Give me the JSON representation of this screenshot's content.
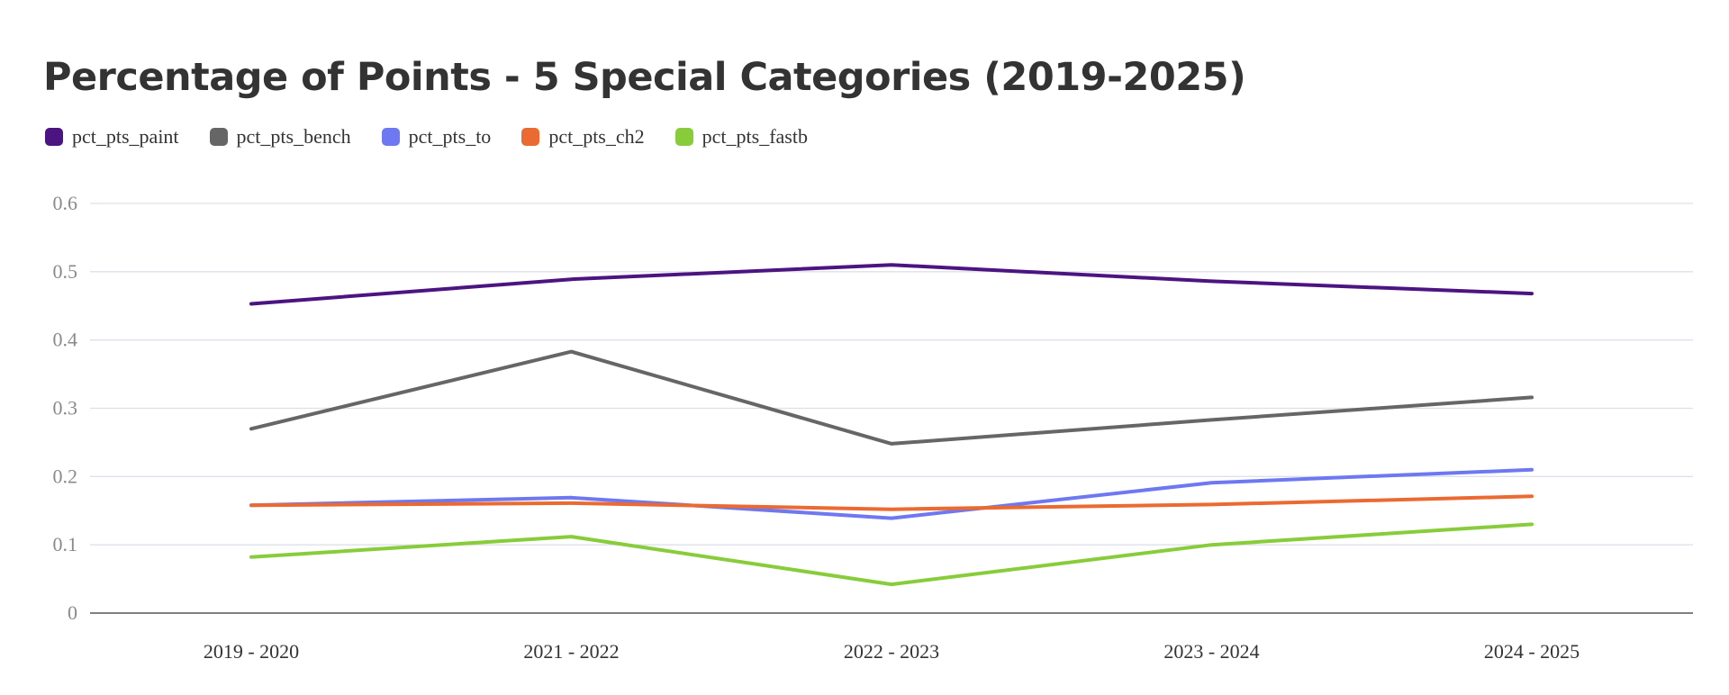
{
  "chart_data": {
    "type": "line",
    "title": "Percentage of Points - 5 Special Categories (2019-2025)",
    "categories": [
      "2019 - 2020",
      "2021 - 2022",
      "2022 - 2023",
      "2023 - 2024",
      "2024 - 2025"
    ],
    "series": [
      {
        "name": "pct_pts_paint",
        "color": "#4b1481",
        "values": [
          0.453,
          0.489,
          0.51,
          0.486,
          0.468
        ]
      },
      {
        "name": "pct_pts_bench",
        "color": "#666666",
        "values": [
          0.27,
          0.383,
          0.248,
          0.283,
          0.316
        ]
      },
      {
        "name": "pct_pts_to",
        "color": "#6e78f0",
        "values": [
          0.158,
          0.169,
          0.139,
          0.191,
          0.21
        ]
      },
      {
        "name": "pct_pts_ch2",
        "color": "#ea6a31",
        "values": [
          0.158,
          0.161,
          0.152,
          0.159,
          0.171
        ]
      },
      {
        "name": "pct_pts_fastb",
        "color": "#88cc3b",
        "values": [
          0.082,
          0.112,
          0.042,
          0.1,
          0.13
        ]
      }
    ],
    "ylim": [
      0,
      0.6
    ],
    "yticks": [
      "0",
      "0.1",
      "0.2",
      "0.3",
      "0.4",
      "0.5",
      "0.6"
    ],
    "xlabel": "",
    "ylabel": "",
    "grid": true,
    "legend_position": "top-left"
  }
}
